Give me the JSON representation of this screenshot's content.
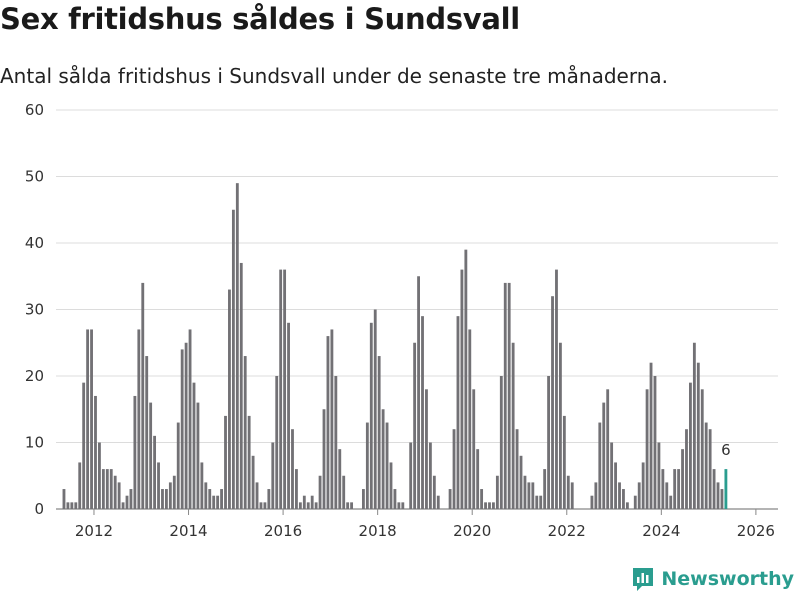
{
  "header": {
    "title": "Sex fritidshus såldes i Sundsvall",
    "subtitle": "Antal sålda fritidshus i Sundsvall under de senaste tre månaderna."
  },
  "brand": {
    "name": "Newsworthy",
    "color": "#2a9d8f"
  },
  "chart_data": {
    "type": "bar",
    "title": "Sex fritidshus såldes i Sundsvall",
    "subtitle": "Antal sålda fritidshus i Sundsvall under de senaste tre månaderna.",
    "xlabel": "",
    "ylabel": "",
    "ylim": [
      0,
      60
    ],
    "yticks": [
      0,
      10,
      20,
      30,
      40,
      50,
      60
    ],
    "xticks": [
      "2012",
      "2014",
      "2016",
      "2018",
      "2020",
      "2022",
      "2024",
      "2026"
    ],
    "start": "2012-01",
    "bar_color": "#727175",
    "highlight_color": "#2a9d8f",
    "highlight_label": "6",
    "grid": true,
    "values": [
      3,
      1,
      1,
      1,
      7,
      19,
      27,
      27,
      17,
      10,
      6,
      6,
      6,
      5,
      4,
      1,
      2,
      3,
      17,
      27,
      34,
      23,
      16,
      11,
      7,
      3,
      3,
      4,
      5,
      13,
      24,
      25,
      27,
      19,
      16,
      7,
      4,
      3,
      2,
      2,
      3,
      14,
      33,
      45,
      49,
      37,
      23,
      14,
      8,
      4,
      1,
      1,
      3,
      10,
      20,
      36,
      36,
      28,
      12,
      6,
      1,
      2,
      1,
      2,
      1,
      5,
      15,
      26,
      27,
      20,
      9,
      5,
      1,
      1,
      0,
      0,
      3,
      13,
      28,
      30,
      23,
      15,
      13,
      7,
      3,
      1,
      1,
      0,
      10,
      25,
      35,
      29,
      18,
      10,
      5,
      2,
      0,
      0,
      3,
      12,
      29,
      36,
      39,
      27,
      18,
      9,
      3,
      1,
      1,
      1,
      5,
      20,
      34,
      34,
      25,
      12,
      8,
      5,
      4,
      4,
      2,
      2,
      6,
      20,
      32,
      36,
      25,
      14,
      5,
      4,
      0,
      0,
      0,
      0,
      2,
      4,
      13,
      16,
      18,
      10,
      7,
      4,
      3,
      1,
      0,
      2,
      4,
      7,
      18,
      22,
      20,
      10,
      6,
      4,
      2,
      6,
      6,
      9,
      12,
      19,
      25,
      22,
      18,
      13,
      12,
      6,
      4,
      3,
      6
    ]
  }
}
